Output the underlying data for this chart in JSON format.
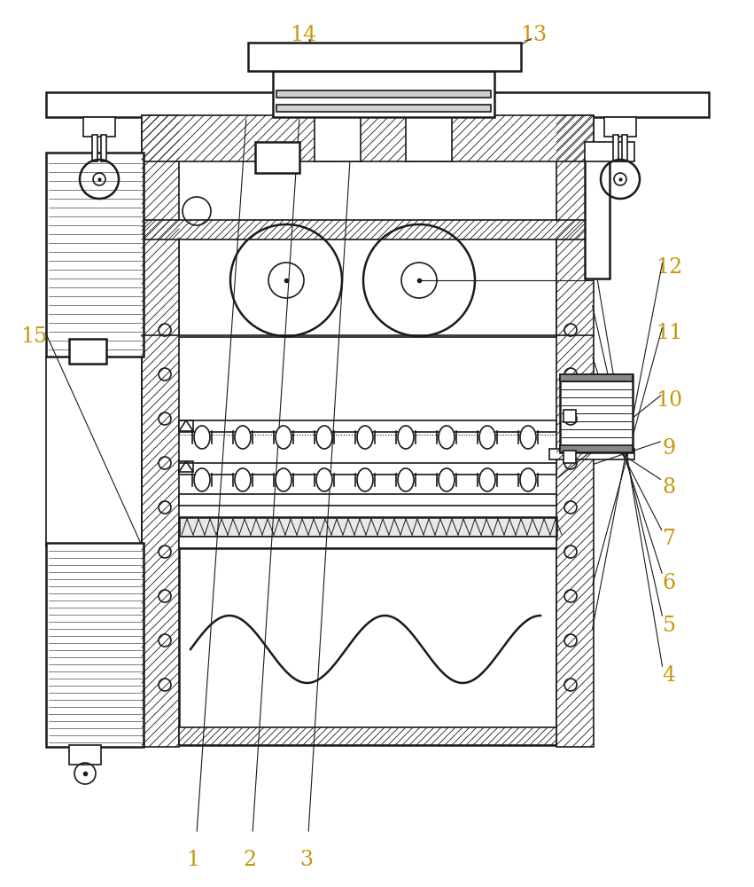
{
  "bg_color": "#ffffff",
  "line_color": "#1a1a1a",
  "label_color": "#c8960a",
  "fig_width": 8.51,
  "fig_height": 10.0
}
